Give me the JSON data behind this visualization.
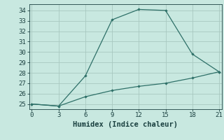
{
  "title": "",
  "xlabel": "Humidex (Indice chaleur)",
  "ylabel": "",
  "background_color": "#c8e8e0",
  "grid_color": "#a8c8c0",
  "grid_color_minor": "#d0e8e4",
  "line_color": "#2e7068",
  "series1_x": [
    0,
    3,
    6,
    9,
    12,
    15,
    18,
    21
  ],
  "series1_y": [
    25,
    24.8,
    27.7,
    33.1,
    34.1,
    34.0,
    29.8,
    28.1
  ],
  "series2_x": [
    0,
    3,
    6,
    9,
    12,
    15,
    18,
    21
  ],
  "series2_y": [
    25,
    24.8,
    25.7,
    26.3,
    26.7,
    27.0,
    27.5,
    28.1
  ],
  "xlim": [
    -0.3,
    21.3
  ],
  "ylim": [
    24.5,
    34.6
  ],
  "xticks": [
    0,
    3,
    6,
    9,
    12,
    15,
    18,
    21
  ],
  "yticks": [
    25,
    26,
    27,
    28,
    29,
    30,
    31,
    32,
    33,
    34
  ],
  "label_fontsize": 7.5,
  "tick_fontsize": 6.5
}
